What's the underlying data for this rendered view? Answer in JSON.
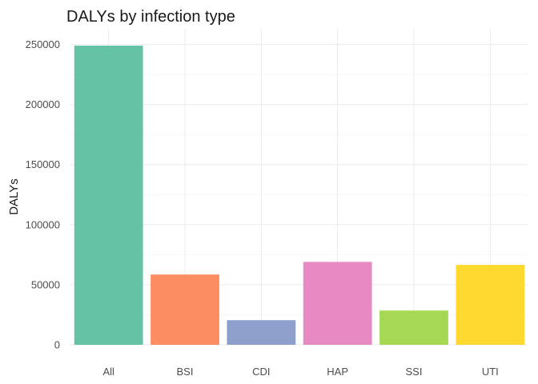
{
  "chart_data": {
    "type": "bar",
    "title": "DALYs by infection type",
    "xlabel": "",
    "ylabel": "DALYs",
    "categories": [
      "All",
      "BSI",
      "CDI",
      "HAP",
      "SSI",
      "UTI"
    ],
    "values": [
      249000,
      58500,
      20500,
      69000,
      28500,
      66500
    ],
    "colors": [
      "#66c2a5",
      "#fc8d62",
      "#8da0cb",
      "#e78ac3",
      "#a6d854",
      "#ffd92f"
    ],
    "ylim": [
      0,
      260000
    ],
    "yticks": [
      0,
      50000,
      100000,
      150000,
      200000,
      250000
    ],
    "ytick_labels": [
      "0",
      "50000",
      "100000",
      "150000",
      "200000",
      "250000"
    ],
    "grid": true,
    "legend": "none"
  }
}
